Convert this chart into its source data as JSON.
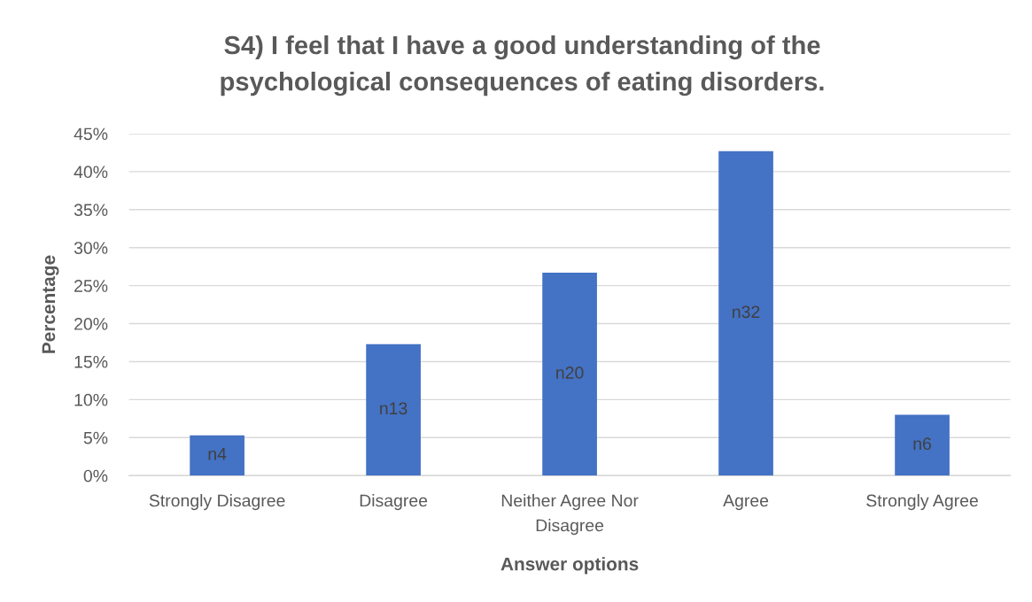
{
  "chart_data": {
    "type": "bar",
    "title": "S4) I feel that I have a good understanding of the psychological consequences of eating disorders.",
    "xlabel": "Answer options",
    "ylabel": "Percentage",
    "categories": [
      "Strongly Disagree",
      "Disagree",
      "Neither Agree Nor Disagree",
      "Agree",
      "Strongly Agree"
    ],
    "values": [
      5.3,
      17.3,
      26.7,
      42.7,
      8.0
    ],
    "color": "#4472c4",
    "value_labels": [
      "n4",
      "n13",
      "n20",
      "n32",
      "n6"
    ],
    "ylim": [
      0,
      45
    ],
    "yticks": [
      {
        "value": 0,
        "label": "0%"
      },
      {
        "value": 5,
        "label": "5%"
      },
      {
        "value": 10,
        "label": "10%"
      },
      {
        "value": 15,
        "label": "15%"
      },
      {
        "value": 20,
        "label": "20%"
      },
      {
        "value": 25,
        "label": "25%"
      },
      {
        "value": 30,
        "label": "30%"
      },
      {
        "value": 35,
        "label": "35%"
      },
      {
        "value": 40,
        "label": "40%"
      },
      {
        "value": 45,
        "label": "45%"
      }
    ],
    "grid": "y"
  }
}
